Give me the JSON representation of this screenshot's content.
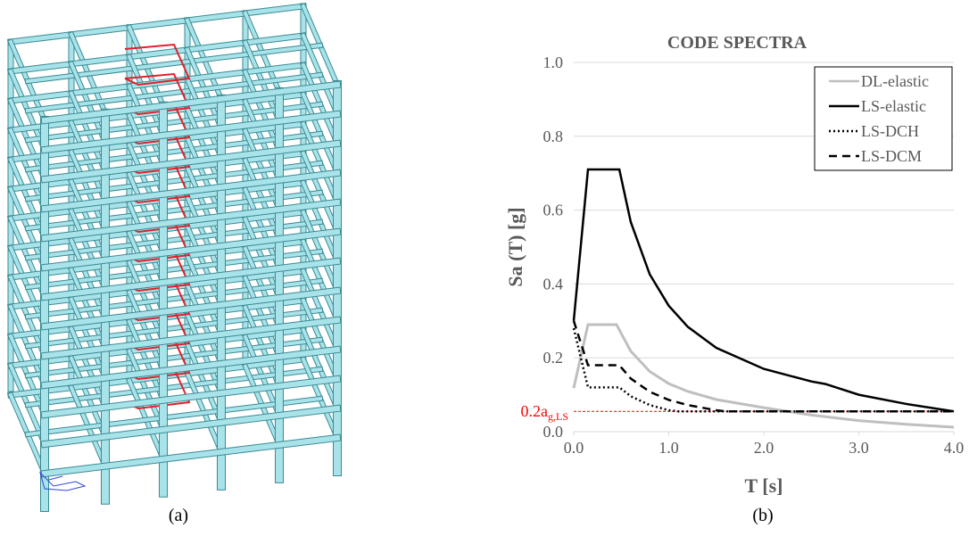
{
  "chart_data": {
    "type": "line",
    "title": "CODE SPECTRA",
    "x_label": "T [s]",
    "y_label": "Sa (T) [g]",
    "xlim": [
      0,
      4
    ],
    "ylim": [
      0,
      1
    ],
    "xticks": [
      {
        "value": 0,
        "label": "0.0"
      },
      {
        "value": 1,
        "label": "1.0"
      },
      {
        "value": 2,
        "label": "2.0"
      },
      {
        "value": 3,
        "label": "3.0"
      },
      {
        "value": 4,
        "label": "4.0"
      }
    ],
    "yticks": [
      {
        "value": 0,
        "label": "0.0"
      },
      0.2,
      0.4,
      0.6,
      0.8,
      {
        "value": 1,
        "label": "1.0"
      }
    ],
    "grid": true,
    "legend": "top-right",
    "series": [
      {
        "name": "DL-elastic",
        "color": "#bfbfbf",
        "dash": "solid",
        "x": [
          0,
          0.15,
          0.45,
          0.6,
          0.8,
          1.0,
          1.2,
          1.5,
          2.0,
          2.5,
          3.0,
          3.5,
          4.0
        ],
        "values": [
          0.118,
          0.29,
          0.29,
          0.218,
          0.163,
          0.13,
          0.109,
          0.087,
          0.065,
          0.045,
          0.03,
          0.02,
          0.012
        ]
      },
      {
        "name": "LS-elastic",
        "color": "#000000",
        "dash": "solid",
        "x": [
          0,
          0.15,
          0.48,
          0.6,
          0.8,
          1.0,
          1.2,
          1.5,
          2.0,
          2.5,
          2.65,
          3.0,
          3.5,
          4.0
        ],
        "values": [
          0.3,
          0.71,
          0.71,
          0.568,
          0.426,
          0.341,
          0.284,
          0.227,
          0.17,
          0.136,
          0.129,
          0.1,
          0.075,
          0.055
        ]
      },
      {
        "name": "LS-DCH",
        "color": "#000000",
        "dash": "dotted",
        "x": [
          0,
          0.15,
          0.48,
          0.6,
          0.8,
          1.0,
          1.1,
          4.0
        ],
        "values": [
          0.28,
          0.12,
          0.12,
          0.096,
          0.072,
          0.058,
          0.055,
          0.055
        ]
      },
      {
        "name": "LS-DCM",
        "color": "#000000",
        "dash": "dashed",
        "x": [
          0,
          0.15,
          0.48,
          0.6,
          0.8,
          1.0,
          1.2,
          1.5,
          1.6,
          4.0
        ],
        "values": [
          0.3,
          0.18,
          0.18,
          0.144,
          0.108,
          0.086,
          0.072,
          0.058,
          0.055,
          0.055
        ]
      }
    ],
    "annotation": {
      "text": "0.2a",
      "subscript": "g,LS",
      "value": 0.055,
      "color": "#ff0000"
    }
  },
  "captions": [
    "(a)",
    "(b)"
  ]
}
